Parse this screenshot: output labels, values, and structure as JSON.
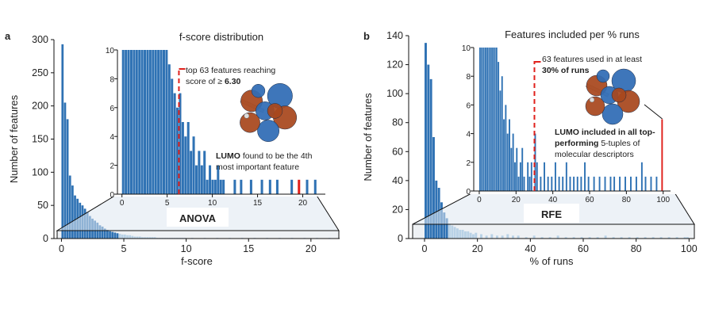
{
  "colors": {
    "bar": "#2f72b4",
    "bar_light": "#b9d2e6",
    "highlight": "#e0201b",
    "orbital_lobe_a": "#2f6cb5",
    "orbital_lobe_b": "#a8471d"
  },
  "panels": {
    "a": {
      "letter": "a",
      "method_label": "ANOVA"
    },
    "b": {
      "letter": "b",
      "method_label": "RFE"
    }
  },
  "chart_data": [
    {
      "id": "a-main",
      "type": "bar",
      "title": "",
      "xlabel": "f-score",
      "ylabel": "Number of features",
      "xlim": [
        -0.6,
        22.3
      ],
      "ylim": [
        0,
        300
      ],
      "xticks": [
        "0",
        "5",
        "10",
        "15",
        "20"
      ],
      "yticks": [
        "0",
        "50",
        "100",
        "150",
        "200",
        "250",
        "300"
      ],
      "bin_width": 0.2,
      "x": [
        0.1,
        0.3,
        0.5,
        0.7,
        0.9,
        1.1,
        1.3,
        1.5,
        1.7,
        1.9,
        2.1,
        2.3,
        2.5,
        2.7,
        2.9,
        3.1,
        3.3,
        3.5,
        3.7,
        3.9,
        4.1,
        4.3,
        4.5,
        4.7,
        4.9,
        5.1,
        5.3,
        5.5,
        5.7,
        5.9,
        6.1,
        6.3,
        6.5,
        6.7,
        6.9,
        7.1,
        7.3,
        7.5,
        7.7,
        7.9,
        8.1,
        8.3,
        8.5,
        8.7,
        8.9,
        9.1,
        9.3,
        9.5,
        9.7,
        9.9,
        10.5,
        11.5,
        12.5,
        13.5,
        14.5,
        15.5,
        16.5,
        17.5,
        18.5,
        19.5,
        20.5,
        21.5
      ],
      "values": [
        293,
        205,
        180,
        95,
        80,
        65,
        60,
        54,
        50,
        45,
        40,
        34,
        30,
        27,
        24,
        20,
        18,
        15,
        13,
        11,
        10,
        9,
        8,
        7,
        6,
        6,
        5,
        5,
        4,
        3,
        3,
        3,
        2,
        2,
        2,
        2,
        2,
        2,
        1,
        1,
        1,
        1,
        1,
        1,
        1,
        1,
        1,
        1,
        1,
        1,
        1,
        1,
        1,
        1,
        1,
        1,
        1,
        1,
        1,
        1,
        1,
        1
      ]
    },
    {
      "id": "a-inset",
      "type": "bar",
      "title": "f-score distribution",
      "xlim": [
        -0.5,
        22.5
      ],
      "ylim": [
        0,
        10
      ],
      "xticks": [
        "0",
        "5",
        "10",
        "15",
        "20"
      ],
      "yticks": [
        "0",
        "2",
        "4",
        "6",
        "8",
        "10"
      ],
      "bin_width": 0.3,
      "x": [
        0.15,
        0.45,
        0.75,
        1.05,
        1.35,
        1.65,
        1.95,
        2.25,
        2.55,
        2.85,
        3.15,
        3.45,
        3.75,
        4.05,
        4.35,
        4.65,
        4.95,
        5.25,
        5.55,
        5.85,
        6.15,
        6.45,
        6.75,
        7.05,
        7.35,
        7.65,
        7.95,
        8.25,
        8.55,
        8.85,
        9.15,
        9.45,
        9.75,
        10.05,
        10.35,
        10.65,
        10.95,
        11.25,
        12.5,
        13.2,
        14.3,
        15.5,
        16.4,
        17.2,
        18.8,
        19.6,
        20.5,
        21.4
      ],
      "values": [
        10,
        10,
        10,
        10,
        10,
        10,
        10,
        10,
        10,
        10,
        10,
        10,
        10,
        10,
        10,
        10,
        10,
        9,
        8,
        7,
        6,
        7,
        5,
        4,
        5,
        3,
        4,
        2,
        3,
        2,
        3,
        1,
        2,
        1,
        1,
        2,
        1,
        1,
        1,
        1,
        1,
        1,
        1,
        1,
        1,
        1,
        1,
        1
      ],
      "highlight_index": 45,
      "threshold": {
        "x": 6.3,
        "label_line1": "top 63 features reaching",
        "label_line2_prefix": "score of ≥ ",
        "label_line2_value": "6.30"
      },
      "annotation": {
        "bold": "LUMO",
        "line1_rest": " found to be the 4th",
        "line2": "most important feature"
      }
    },
    {
      "id": "b-main",
      "type": "bar",
      "title": "",
      "xlabel": "% of runs",
      "ylabel": "Number of features",
      "xlim": [
        -6,
        102
      ],
      "ylim": [
        0,
        140
      ],
      "xticks": [
        "0",
        "20",
        "40",
        "60",
        "80",
        "100"
      ],
      "yticks": [
        "0",
        "20",
        "40",
        "60",
        "80",
        "100",
        "120",
        "140"
      ],
      "bin_width": 1,
      "x": [
        0.5,
        1.5,
        2.5,
        3.5,
        4.5,
        5.5,
        6.5,
        7.5,
        8.5,
        9.5,
        10.5,
        11.5,
        12.5,
        13.5,
        14.5,
        15.5,
        16.5,
        17.5,
        18.5,
        19.5,
        21.5,
        23.5,
        25.5,
        27.5,
        29.5,
        31.5,
        33.5,
        35.5,
        38.5,
        41.5,
        44.5,
        47.5,
        50.5,
        53.5,
        56.5,
        59.5,
        62.5,
        65.5,
        68.5,
        71.5,
        74.5,
        77.5,
        80.5,
        83.5,
        86.5,
        89.5,
        92.5,
        95.5,
        98.5,
        99.5
      ],
      "values": [
        135,
        120,
        110,
        70,
        40,
        35,
        25,
        18,
        14,
        10,
        9,
        8,
        7,
        6,
        6,
        5,
        5,
        4,
        3,
        4,
        3,
        2,
        3,
        2,
        2,
        3,
        2,
        2,
        1,
        2,
        1,
        1,
        2,
        1,
        1,
        1,
        1,
        1,
        2,
        1,
        1,
        1,
        1,
        1,
        1,
        1,
        1,
        1,
        1,
        1
      ]
    },
    {
      "id": "b-inset",
      "type": "bar",
      "title": "Features included per % runs",
      "xlim": [
        -3,
        104
      ],
      "ylim": [
        0,
        10
      ],
      "xticks": [
        "0",
        "20",
        "40",
        "60",
        "80",
        "100"
      ],
      "yticks": [
        "0",
        "2",
        "4",
        "6",
        "8",
        "10"
      ],
      "bin_width": 1,
      "x": [
        0.5,
        1.5,
        2.5,
        3.5,
        4.5,
        5.5,
        6.5,
        7.5,
        8.5,
        9.5,
        10.5,
        11.5,
        12.5,
        13.5,
        14.5,
        15.5,
        16.5,
        17.5,
        18.5,
        19.5,
        20.5,
        21.5,
        22.5,
        23.5,
        24.5,
        26.5,
        27.5,
        28.5,
        30.5,
        31.5,
        33.5,
        35.5,
        37.5,
        39.5,
        41.5,
        43.5,
        45.5,
        47.5,
        49.5,
        51.5,
        53.5,
        55.5,
        57.5,
        59.5,
        62.5,
        65.5,
        68.5,
        71.5,
        73.5,
        76.5,
        79.5,
        82.5,
        85.5,
        88.5,
        90.5,
        93.5,
        96.5,
        99.5
      ],
      "values": [
        10,
        10,
        10,
        10,
        10,
        10,
        10,
        10,
        10,
        10,
        9,
        7,
        8,
        5,
        6,
        4,
        5,
        3,
        4,
        2,
        3,
        1,
        2,
        3,
        1,
        2,
        1,
        2,
        4,
        2,
        1,
        2,
        1,
        1,
        2,
        1,
        1,
        2,
        1,
        1,
        1,
        1,
        2,
        1,
        1,
        1,
        1,
        1,
        1,
        1,
        1,
        1,
        1,
        2,
        1,
        1,
        1,
        5
      ],
      "highlight_index": 57,
      "threshold": {
        "x": 30,
        "label_line1": "63 features used in at least",
        "label_line2": "30% of runs"
      },
      "annotation": {
        "line1_bold": "LUMO included in all top-",
        "line2_bold": "performing",
        "line2_rest": " 5-tuples of",
        "line3": "molecular descriptors"
      }
    }
  ]
}
